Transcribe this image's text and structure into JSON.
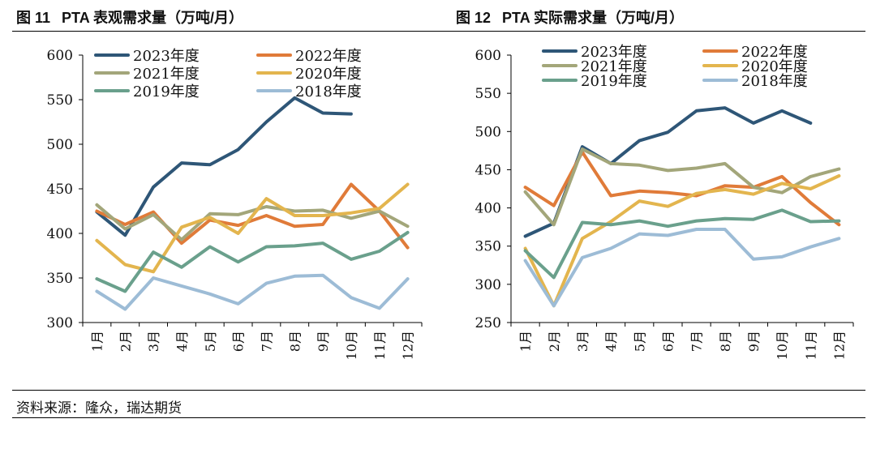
{
  "titles": {
    "left_fig": "图 11",
    "left_text": "PTA 表观需求量（万吨/月）",
    "right_fig": "图 12",
    "right_text": "PTA 实际需求量（万吨/月）"
  },
  "source": "资料来源：隆众，瑞达期货",
  "series_colors": {
    "2023年度": "#2e5677",
    "2022年度": "#e07b39",
    "2021年度": "#a3a67a",
    "2020年度": "#e3b54e",
    "2019年度": "#6aa08c",
    "2018年度": "#9dbcd6"
  },
  "chart_data": [
    {
      "type": "line",
      "title": "PTA 表观需求量（万吨/月）",
      "categories": [
        "1月",
        "2月",
        "3月",
        "4月",
        "5月",
        "6月",
        "7月",
        "8月",
        "9月",
        "10月",
        "11月",
        "12月"
      ],
      "ylim": [
        300,
        600
      ],
      "yticks": [
        300,
        350,
        400,
        450,
        500,
        550,
        600
      ],
      "legend_position": "top",
      "grid": false,
      "series": [
        {
          "name": "2023年度",
          "values": [
            424,
            398,
            452,
            479,
            477,
            494,
            525,
            552,
            535,
            534,
            null,
            null
          ]
        },
        {
          "name": "2022年度",
          "values": [
            425,
            410,
            424,
            389,
            415,
            409,
            420,
            408,
            410,
            455,
            425,
            384
          ]
        },
        {
          "name": "2021年度",
          "values": [
            432,
            405,
            421,
            393,
            422,
            421,
            430,
            425,
            426,
            417,
            425,
            408
          ]
        },
        {
          "name": "2020年度",
          "values": [
            392,
            365,
            357,
            407,
            418,
            400,
            439,
            420,
            420,
            423,
            428,
            455
          ]
        },
        {
          "name": "2019年度",
          "values": [
            349,
            335,
            379,
            362,
            385,
            368,
            385,
            386,
            389,
            371,
            380,
            401
          ]
        },
        {
          "name": "2018年度",
          "values": [
            335,
            315,
            350,
            341,
            332,
            321,
            344,
            352,
            353,
            328,
            316,
            349
          ]
        }
      ]
    },
    {
      "type": "line",
      "title": "PTA 实际需求量（万吨/月）",
      "categories": [
        "1月",
        "2月",
        "3月",
        "4月",
        "5月",
        "6月",
        "7月",
        "8月",
        "9月",
        "10月",
        "11月",
        "12月"
      ],
      "ylim": [
        250,
        600
      ],
      "yticks": [
        250,
        300,
        350,
        400,
        450,
        500,
        550,
        600
      ],
      "legend_position": "top",
      "grid": false,
      "series": [
        {
          "name": "2023年度",
          "values": [
            363,
            380,
            480,
            458,
            488,
            499,
            527,
            531,
            511,
            527,
            511,
            null
          ]
        },
        {
          "name": "2022年度",
          "values": [
            427,
            403,
            473,
            416,
            422,
            420,
            416,
            429,
            427,
            441,
            407,
            378
          ]
        },
        {
          "name": "2021年度",
          "values": [
            421,
            378,
            477,
            458,
            456,
            449,
            452,
            458,
            427,
            420,
            441,
            451
          ]
        },
        {
          "name": "2020年度",
          "values": [
            347,
            272,
            360,
            382,
            409,
            402,
            419,
            424,
            418,
            432,
            425,
            442
          ]
        },
        {
          "name": "2019年度",
          "values": [
            344,
            309,
            381,
            378,
            383,
            376,
            383,
            386,
            385,
            397,
            382,
            383
          ]
        },
        {
          "name": "2018年度",
          "values": [
            331,
            272,
            335,
            347,
            366,
            364,
            372,
            372,
            333,
            336,
            349,
            360
          ]
        }
      ]
    }
  ]
}
